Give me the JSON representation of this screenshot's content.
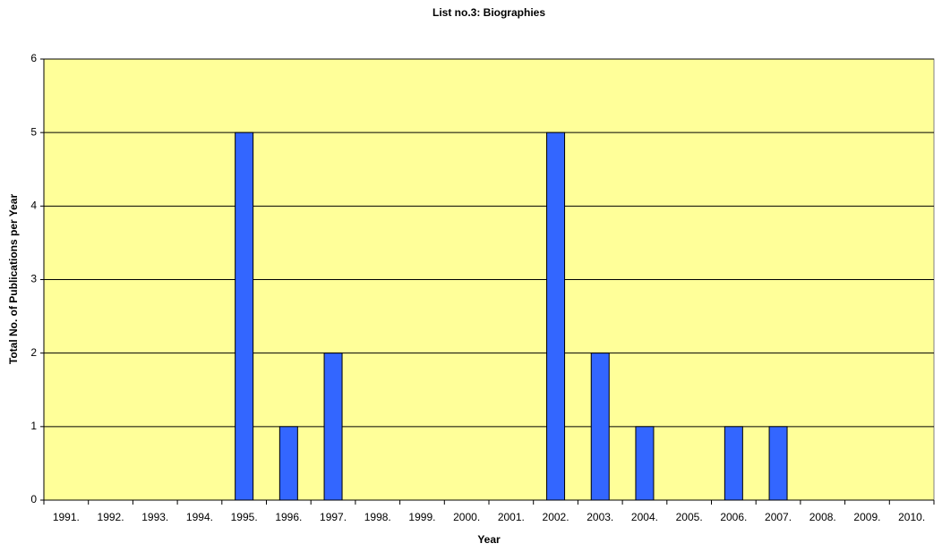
{
  "chart_data": {
    "type": "bar",
    "title": "List no.3: Biographies",
    "x_label": "Year",
    "y_label": "Total No. of Publications per Year",
    "categories": [
      "1991.",
      "1992.",
      "1993.",
      "1994.",
      "1995.",
      "1996.",
      "1997.",
      "1998.",
      "1999.",
      "2000.",
      "2001.",
      "2002.",
      "2003.",
      "2004.",
      "2005.",
      "2006.",
      "2007.",
      "2008.",
      "2009.",
      "2010."
    ],
    "values": [
      0,
      0,
      0,
      0,
      5,
      1,
      2,
      0,
      0,
      0,
      0,
      5,
      2,
      1,
      0,
      1,
      1,
      0,
      0,
      0
    ],
    "color": "#3366ff",
    "background": "#ffff99",
    "ylim": [
      0,
      6
    ],
    "yticks": [
      0,
      1,
      2,
      3,
      4,
      5,
      6
    ],
    "grid": true
  }
}
